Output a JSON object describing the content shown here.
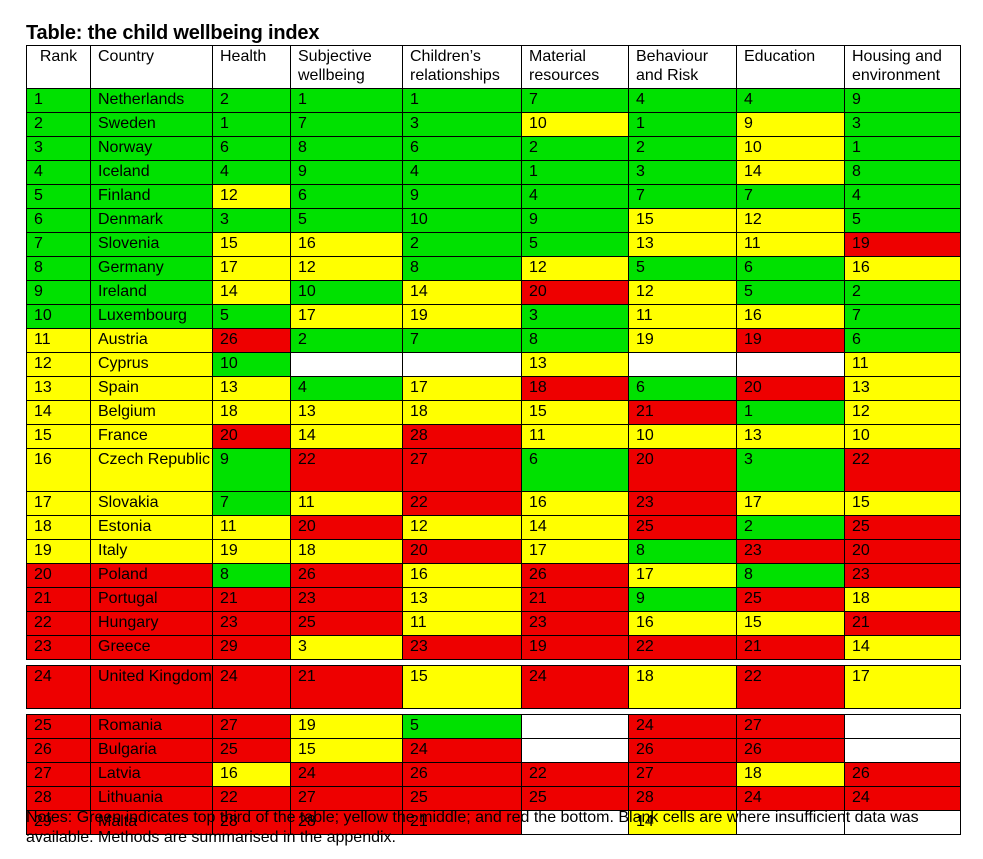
{
  "title": "Table: the child wellbeing index",
  "headers": [
    "Rank",
    "Country",
    "Health",
    "Subjective wellbeing",
    "Children’s relationships",
    "Material resources",
    "Behaviour and Risk",
    "Education",
    "Housing and environment"
  ],
  "colors": {
    "green": "#00e100",
    "yellow": "#ffff00",
    "red": "#ee0000",
    "blank": "#ffffff"
  },
  "rows": [
    {
      "rank": "1",
      "country": "Netherlands",
      "cells": [
        [
          "2",
          "g"
        ],
        [
          "1",
          "g"
        ],
        [
          "1",
          "g"
        ],
        [
          "7",
          "g"
        ],
        [
          "4",
          "g"
        ],
        [
          "4",
          "g"
        ],
        [
          "9",
          "g"
        ]
      ]
    },
    {
      "rank": "2",
      "country": "Sweden",
      "cells": [
        [
          "1",
          "g"
        ],
        [
          "7",
          "g"
        ],
        [
          "3",
          "g"
        ],
        [
          "10",
          "y"
        ],
        [
          "1",
          "g"
        ],
        [
          "9",
          "y"
        ],
        [
          "3",
          "g"
        ]
      ]
    },
    {
      "rank": "3",
      "country": "Norway",
      "cells": [
        [
          "6",
          "g"
        ],
        [
          "8",
          "g"
        ],
        [
          "6",
          "g"
        ],
        [
          "2",
          "g"
        ],
        [
          "2",
          "g"
        ],
        [
          "10",
          "y"
        ],
        [
          "1",
          "g"
        ]
      ]
    },
    {
      "rank": "4",
      "country": "Iceland",
      "cells": [
        [
          "4",
          "g"
        ],
        [
          "9",
          "g"
        ],
        [
          "4",
          "g"
        ],
        [
          "1",
          "g"
        ],
        [
          "3",
          "g"
        ],
        [
          "14",
          "y"
        ],
        [
          "8",
          "g"
        ]
      ]
    },
    {
      "rank": "5",
      "country": "Finland",
      "cells": [
        [
          "12",
          "y"
        ],
        [
          "6",
          "g"
        ],
        [
          "9",
          "g"
        ],
        [
          "4",
          "g"
        ],
        [
          "7",
          "g"
        ],
        [
          "7",
          "g"
        ],
        [
          "4",
          "g"
        ]
      ]
    },
    {
      "rank": "6",
      "country": "Denmark",
      "cells": [
        [
          "3",
          "g"
        ],
        [
          "5",
          "g"
        ],
        [
          "10",
          "g"
        ],
        [
          "9",
          "g"
        ],
        [
          "15",
          "y"
        ],
        [
          "12",
          "y"
        ],
        [
          "5",
          "g"
        ]
      ]
    },
    {
      "rank": "7",
      "country": "Slovenia",
      "cells": [
        [
          "15",
          "y"
        ],
        [
          "16",
          "y"
        ],
        [
          "2",
          "g"
        ],
        [
          "5",
          "g"
        ],
        [
          "13",
          "y"
        ],
        [
          "11",
          "y"
        ],
        [
          "19",
          "r"
        ]
      ]
    },
    {
      "rank": "8",
      "country": "Germany",
      "cells": [
        [
          "17",
          "y"
        ],
        [
          "12",
          "y"
        ],
        [
          "8",
          "g"
        ],
        [
          "12",
          "y"
        ],
        [
          "5",
          "g"
        ],
        [
          "6",
          "g"
        ],
        [
          "16",
          "y"
        ]
      ]
    },
    {
      "rank": "9",
      "country": "Ireland",
      "cells": [
        [
          "14",
          "y"
        ],
        [
          "10",
          "g"
        ],
        [
          "14",
          "y"
        ],
        [
          "20",
          "r"
        ],
        [
          "12",
          "y"
        ],
        [
          "5",
          "g"
        ],
        [
          "2",
          "g"
        ]
      ]
    },
    {
      "rank": "10",
      "country": "Luxembourg",
      "cells": [
        [
          "5",
          "g"
        ],
        [
          "17",
          "y"
        ],
        [
          "19",
          "y"
        ],
        [
          "3",
          "g"
        ],
        [
          "11",
          "y"
        ],
        [
          "16",
          "y"
        ],
        [
          "7",
          "g"
        ]
      ]
    },
    {
      "rank": "11",
      "country": "Austria",
      "cells": [
        [
          "26",
          "r"
        ],
        [
          "2",
          "g"
        ],
        [
          "7",
          "g"
        ],
        [
          "8",
          "g"
        ],
        [
          "19",
          "y"
        ],
        [
          "19",
          "r"
        ],
        [
          "6",
          "g"
        ]
      ]
    },
    {
      "rank": "12",
      "country": "Cyprus",
      "cells": [
        [
          "10",
          "g"
        ],
        [
          "",
          "w"
        ],
        [
          "",
          "w"
        ],
        [
          "13",
          "y"
        ],
        [
          "",
          "w"
        ],
        [
          "",
          "w"
        ],
        [
          "11",
          "y"
        ]
      ]
    },
    {
      "rank": "13",
      "country": "Spain",
      "cells": [
        [
          "13",
          "y"
        ],
        [
          "4",
          "g"
        ],
        [
          "17",
          "y"
        ],
        [
          "18",
          "r"
        ],
        [
          "6",
          "g"
        ],
        [
          "20",
          "r"
        ],
        [
          "13",
          "y"
        ]
      ]
    },
    {
      "rank": "14",
      "country": "Belgium",
      "cells": [
        [
          "18",
          "y"
        ],
        [
          "13",
          "y"
        ],
        [
          "18",
          "y"
        ],
        [
          "15",
          "y"
        ],
        [
          "21",
          "r"
        ],
        [
          "1",
          "g"
        ],
        [
          "12",
          "y"
        ]
      ]
    },
    {
      "rank": "15",
      "country": "France",
      "cells": [
        [
          "20",
          "r"
        ],
        [
          "14",
          "y"
        ],
        [
          "28",
          "r"
        ],
        [
          "11",
          "y"
        ],
        [
          "10",
          "y"
        ],
        [
          "13",
          "y"
        ],
        [
          "10",
          "y"
        ]
      ]
    },
    {
      "rank": "16",
      "country": "Czech Republic",
      "tall": true,
      "cells": [
        [
          "9",
          "g"
        ],
        [
          "22",
          "r"
        ],
        [
          "27",
          "r"
        ],
        [
          "6",
          "g"
        ],
        [
          "20",
          "r"
        ],
        [
          "3",
          "g"
        ],
        [
          "22",
          "r"
        ]
      ]
    },
    {
      "rank": "17",
      "country": "Slovakia",
      "cells": [
        [
          "7",
          "g"
        ],
        [
          "11",
          "y"
        ],
        [
          "22",
          "r"
        ],
        [
          "16",
          "y"
        ],
        [
          "23",
          "r"
        ],
        [
          "17",
          "y"
        ],
        [
          "15",
          "y"
        ]
      ]
    },
    {
      "rank": "18",
      "country": "Estonia",
      "cells": [
        [
          "11",
          "y"
        ],
        [
          "20",
          "r"
        ],
        [
          "12",
          "y"
        ],
        [
          "14",
          "y"
        ],
        [
          "25",
          "r"
        ],
        [
          "2",
          "g"
        ],
        [
          "25",
          "r"
        ]
      ]
    },
    {
      "rank": "19",
      "country": "Italy",
      "cells": [
        [
          "19",
          "y"
        ],
        [
          "18",
          "y"
        ],
        [
          "20",
          "r"
        ],
        [
          "17",
          "y"
        ],
        [
          "8",
          "g"
        ],
        [
          "23",
          "r"
        ],
        [
          "20",
          "r"
        ]
      ]
    },
    {
      "rank": "20",
      "country": "Poland",
      "cells": [
        [
          "8",
          "g"
        ],
        [
          "26",
          "r"
        ],
        [
          "16",
          "y"
        ],
        [
          "26",
          "r"
        ],
        [
          "17",
          "y"
        ],
        [
          "8",
          "g"
        ],
        [
          "23",
          "r"
        ]
      ]
    },
    {
      "rank": "21",
      "country": "Portugal",
      "cells": [
        [
          "21",
          "r"
        ],
        [
          "23",
          "r"
        ],
        [
          "13",
          "y"
        ],
        [
          "21",
          "r"
        ],
        [
          "9",
          "g"
        ],
        [
          "25",
          "r"
        ],
        [
          "18",
          "y"
        ]
      ]
    },
    {
      "rank": "22",
      "country": "Hungary",
      "cells": [
        [
          "23",
          "r"
        ],
        [
          "25",
          "r"
        ],
        [
          "11",
          "y"
        ],
        [
          "23",
          "r"
        ],
        [
          "16",
          "y"
        ],
        [
          "15",
          "y"
        ],
        [
          "21",
          "r"
        ]
      ]
    },
    {
      "rank": "23",
      "country": "Greece",
      "cells": [
        [
          "29",
          "r"
        ],
        [
          "3",
          "y"
        ],
        [
          "23",
          "r"
        ],
        [
          "19",
          "r"
        ],
        [
          "22",
          "r"
        ],
        [
          "21",
          "r"
        ],
        [
          "14",
          "y"
        ]
      ]
    },
    {
      "rank": "24",
      "country": "United Kingdom",
      "tall": true,
      "gap_before": true,
      "cells": [
        [
          "24",
          "r"
        ],
        [
          "21",
          "r"
        ],
        [
          "15",
          "y"
        ],
        [
          "24",
          "r"
        ],
        [
          "18",
          "y"
        ],
        [
          "22",
          "r"
        ],
        [
          "17",
          "y"
        ]
      ]
    },
    {
      "rank": "25",
      "country": "Romania",
      "gap_before": true,
      "cells": [
        [
          "27",
          "r"
        ],
        [
          "19",
          "y"
        ],
        [
          "5",
          "g"
        ],
        [
          "",
          "w"
        ],
        [
          "24",
          "r"
        ],
        [
          "27",
          "r"
        ],
        [
          "",
          "w"
        ]
      ]
    },
    {
      "rank": "26",
      "country": "Bulgaria",
      "cells": [
        [
          "25",
          "r"
        ],
        [
          "15",
          "y"
        ],
        [
          "24",
          "r"
        ],
        [
          "",
          "w"
        ],
        [
          "26",
          "r"
        ],
        [
          "26",
          "r"
        ],
        [
          "",
          "w"
        ]
      ]
    },
    {
      "rank": "27",
      "country": "Latvia",
      "cells": [
        [
          "16",
          "y"
        ],
        [
          "24",
          "r"
        ],
        [
          "26",
          "r"
        ],
        [
          "22",
          "r"
        ],
        [
          "27",
          "r"
        ],
        [
          "18",
          "y"
        ],
        [
          "26",
          "r"
        ]
      ]
    },
    {
      "rank": "28",
      "country": "Lithuania",
      "cells": [
        [
          "22",
          "r"
        ],
        [
          "27",
          "r"
        ],
        [
          "25",
          "r"
        ],
        [
          "25",
          "r"
        ],
        [
          "28",
          "r"
        ],
        [
          "24",
          "r"
        ],
        [
          "24",
          "r"
        ]
      ]
    },
    {
      "rank": "29",
      "country": "Malta",
      "cells": [
        [
          "28",
          "r"
        ],
        [
          "28",
          "r"
        ],
        [
          "21",
          "r"
        ],
        [
          "",
          "w"
        ],
        [
          "14",
          "y"
        ],
        [
          "",
          "w"
        ],
        [
          "",
          "w"
        ]
      ]
    }
  ],
  "notes": "Notes: Green indicates top third of the table; yellow the middle; and red the bottom. Blank cells are where insufficient data was available. Methods are summarised in the appendix."
}
